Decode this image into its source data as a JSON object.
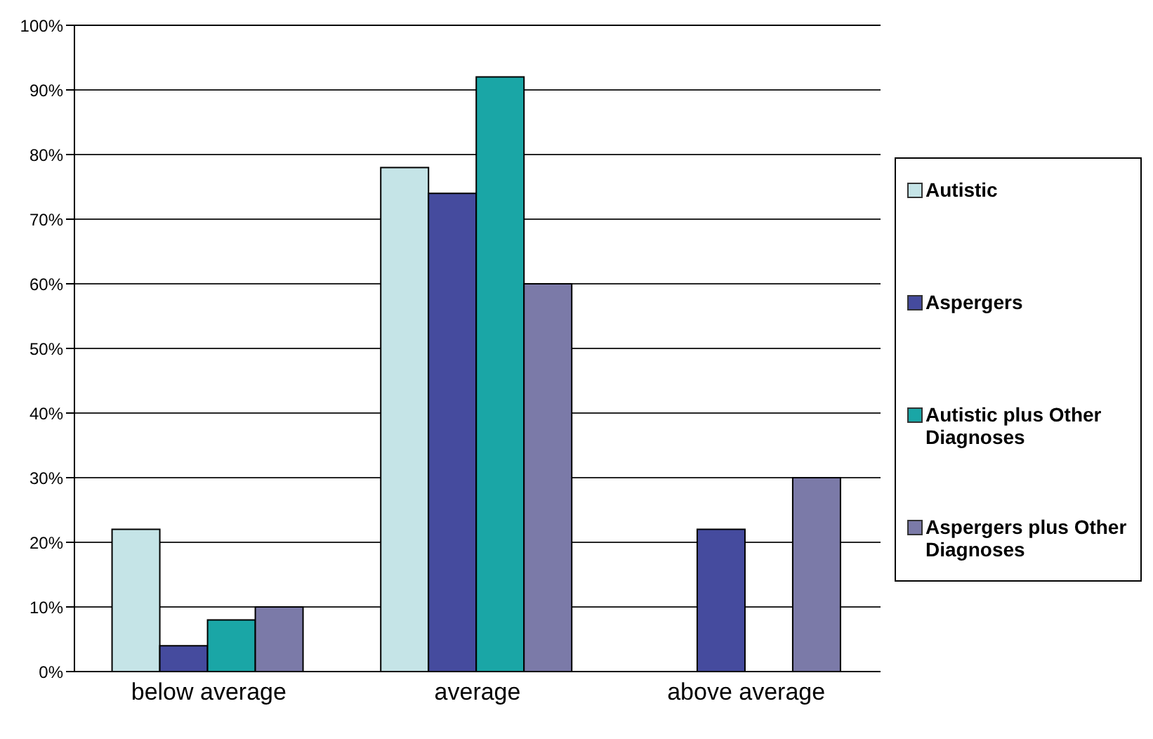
{
  "chart_data": {
    "type": "bar",
    "categories": [
      "below average",
      "average",
      "above average"
    ],
    "series": [
      {
        "name": "Autistic",
        "color": "#c5e4e7",
        "values": [
          22,
          78,
          0
        ]
      },
      {
        "name": "Aspergers",
        "color": "#454b9e",
        "values": [
          4,
          74,
          22
        ]
      },
      {
        "name": "Autistic plus Other Diagnoses",
        "color": "#1aa6a6",
        "values": [
          8,
          92,
          0
        ]
      },
      {
        "name": "Aspergers plus Other Diagnoses",
        "color": "#7b7aa8",
        "values": [
          10,
          60,
          30
        ]
      }
    ],
    "ylim": [
      0,
      100
    ],
    "yticks": [
      {
        "value": 0,
        "label": "0%"
      },
      {
        "value": 10,
        "label": "10%"
      },
      {
        "value": 20,
        "label": "20%"
      },
      {
        "value": 30,
        "label": "30%"
      },
      {
        "value": 40,
        "label": "40%"
      },
      {
        "value": 50,
        "label": "50%"
      },
      {
        "value": 60,
        "label": "60%"
      },
      {
        "value": 70,
        "label": "70%"
      },
      {
        "value": 80,
        "label": "80%"
      },
      {
        "value": 90,
        "label": "90%"
      },
      {
        "value": 100,
        "label": "100%"
      }
    ],
    "grid": "y",
    "legend": "right"
  }
}
